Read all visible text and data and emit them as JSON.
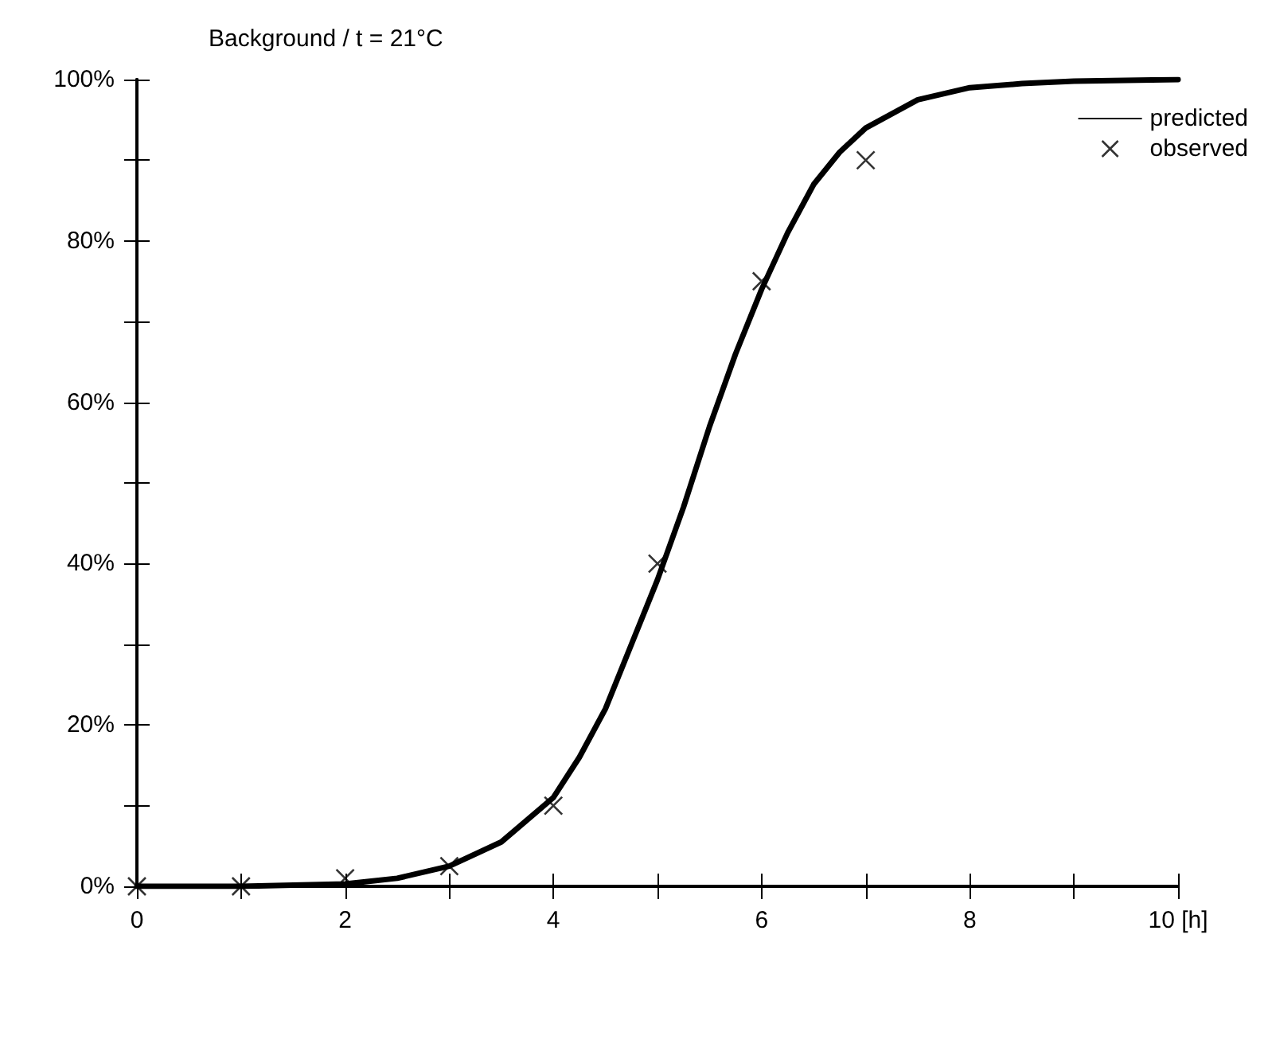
{
  "chart_data": {
    "type": "line",
    "title": "Background / t = 21°C",
    "xlim": [
      0,
      10
    ],
    "ylim": [
      0,
      100
    ],
    "xticks": [
      0,
      {
        "value": 1,
        "label": null
      },
      2,
      {
        "value": 3,
        "label": null
      },
      4,
      {
        "value": 5,
        "label": null
      },
      6,
      {
        "value": 7,
        "label": null
      },
      8,
      {
        "value": 9,
        "label": null
      },
      {
        "value": 10,
        "label": "10 [h]"
      }
    ],
    "yticks": [
      {
        "value": 0,
        "label": "0%"
      },
      {
        "value": 10,
        "label": null
      },
      {
        "value": 20,
        "label": "20%"
      },
      {
        "value": 30,
        "label": null
      },
      {
        "value": 40,
        "label": "40%"
      },
      {
        "value": 50,
        "label": null
      },
      {
        "value": 60,
        "label": "60%"
      },
      {
        "value": 70,
        "label": null
      },
      {
        "value": 80,
        "label": "80%"
      },
      {
        "value": 90,
        "label": null
      },
      {
        "value": 100,
        "label": "100%"
      }
    ],
    "grid": false,
    "legend": "top right",
    "series": [
      {
        "name": "predicted",
        "color": "#000000",
        "marker": "none",
        "line_style": "solid",
        "x": [
          0,
          1,
          2,
          2.5,
          3,
          3.5,
          4,
          4.25,
          4.5,
          4.75,
          5,
          5.25,
          5.5,
          5.75,
          6,
          6.25,
          6.5,
          6.75,
          7,
          7.5,
          8,
          8.5,
          9,
          10
        ],
        "values": [
          0,
          0,
          0.3,
          1,
          2.5,
          5.5,
          11,
          16,
          22,
          30,
          38,
          47,
          57,
          66,
          74,
          81,
          87,
          91,
          94,
          97.5,
          99,
          99.5,
          99.8,
          100
        ]
      },
      {
        "name": "observed",
        "type": "scatter",
        "color": "#000000",
        "marker": "cross",
        "x": [
          0,
          1,
          2,
          3,
          4,
          5,
          6,
          7
        ],
        "values": [
          0,
          0,
          1,
          2.5,
          10,
          40,
          75,
          90
        ]
      }
    ]
  }
}
